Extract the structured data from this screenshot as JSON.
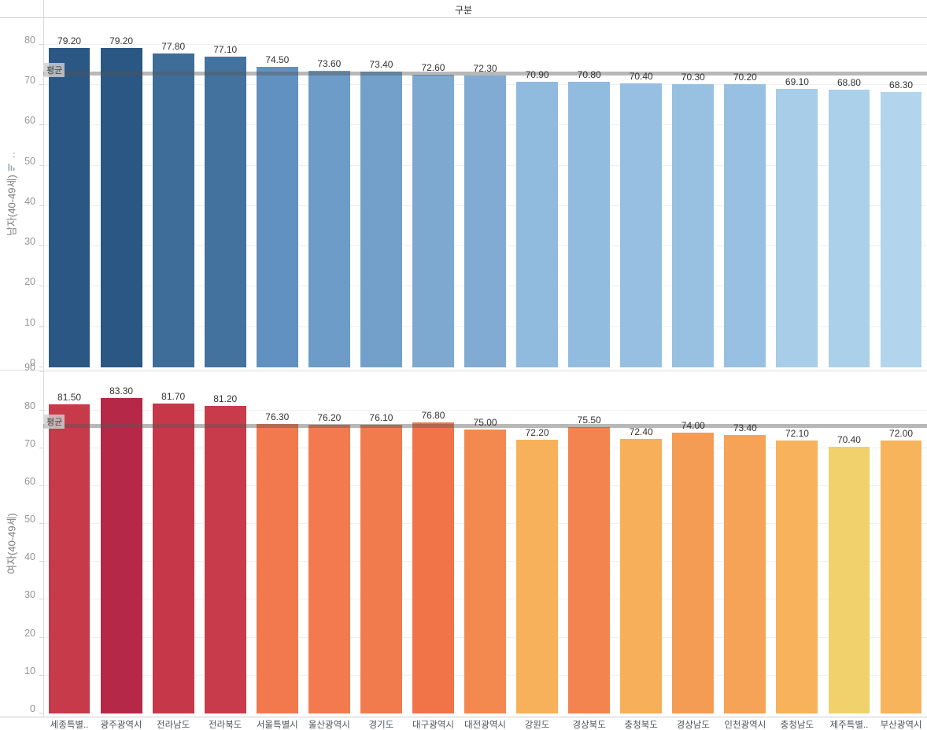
{
  "header": {
    "title": "구분"
  },
  "chart_data": {
    "type": "bar",
    "title": "구분",
    "orientation": "vertical",
    "grid": true,
    "categories": [
      "세종특별..",
      "광주광역시",
      "전라남도",
      "전라북도",
      "서울특별시",
      "울산광역시",
      "경기도",
      "대구광역시",
      "대전광역시",
      "강원도",
      "경상북도",
      "충청북도",
      "경상남도",
      "인천광역시",
      "충청남도",
      "제주특별..",
      "부산광역시"
    ],
    "reference_line_label": "평균",
    "panels": [
      {
        "name": "male",
        "axis_title": "남자(40-49세)",
        "axis_title_truncated": "..",
        "has_sort_icon": true,
        "ylim": [
          0,
          86.8
        ],
        "y_ticks": [
          0,
          10,
          20,
          30,
          40,
          50,
          60,
          70,
          80
        ],
        "average_value": 72.85,
        "average_label": "평균",
        "values": [
          79.2,
          79.2,
          77.8,
          77.1,
          74.5,
          73.6,
          73.4,
          72.6,
          72.3,
          70.9,
          70.8,
          70.4,
          70.3,
          70.2,
          69.1,
          68.8,
          68.3
        ],
        "value_labels": [
          "79.20",
          "79.20",
          "77.80",
          "77.10",
          "74.50",
          "73.60",
          "73.40",
          "72.60",
          "72.30",
          "70.90",
          "70.80",
          "70.40",
          "70.30",
          "70.20",
          "69.10",
          "68.80",
          "68.30"
        ],
        "bar_colors": [
          "#2a5783",
          "#2a5783",
          "#3e6d99",
          "#44729e",
          "#6191c0",
          "#6e9cc8",
          "#72a0ca",
          "#7da8d0",
          "#81abd2",
          "#90bade",
          "#91bbdf",
          "#96bfe1",
          "#97c0e1",
          "#98c0e2",
          "#a7cde9",
          "#abd0ea",
          "#b2d4ec"
        ]
      },
      {
        "name": "female",
        "axis_title": "여자(40-49세)",
        "axis_title_truncated": "",
        "has_sort_icon": false,
        "ylim": [
          0,
          90.7
        ],
        "y_ticks": [
          0,
          10,
          20,
          30,
          40,
          50,
          60,
          70,
          80,
          90
        ],
        "average_value": 75.89,
        "average_label": "평균",
        "values": [
          81.5,
          83.3,
          81.7,
          81.2,
          76.3,
          76.2,
          76.1,
          76.8,
          75.0,
          72.2,
          75.5,
          72.4,
          74.0,
          73.4,
          72.1,
          70.4,
          72.0
        ],
        "value_labels": [
          "81.50",
          "83.30",
          "81.70",
          "81.20",
          "76.30",
          "76.20",
          "76.10",
          "76.80",
          "75.00",
          "72.20",
          "75.50",
          "72.40",
          "74.00",
          "73.40",
          "72.10",
          "70.40",
          "72.00"
        ],
        "bar_colors": [
          "#c73a4a",
          "#b52847",
          "#c63849",
          "#c83b4a",
          "#f2794d",
          "#f27a4e",
          "#f27b4e",
          "#f17449",
          "#f4894f",
          "#f7b15a",
          "#f38450",
          "#f7af59",
          "#f59c54",
          "#f6a357",
          "#f7b25b",
          "#f0d16c",
          "#f7b45b"
        ]
      }
    ]
  },
  "colors": {
    "reference_line": "rgba(85,85,85,0.42)",
    "reference_badge_bg": "rgba(208,208,208,0.82)",
    "gridline": "#f0f0f0",
    "axis_line": "#d9d9d9",
    "tick_text": "#949494",
    "bar_label_text": "#333333",
    "x_label_text": "#4e545b",
    "title_text": "#333333"
  }
}
